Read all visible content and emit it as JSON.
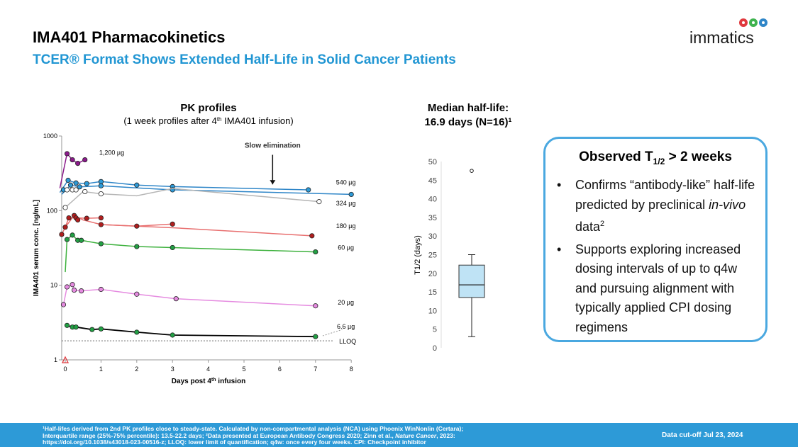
{
  "header": {
    "title": "IMA401 Pharmacokinetics",
    "subtitle": "TCER® Format Shows Extended Half-Life in Solid Cancer Patients",
    "logo_text": "immatics"
  },
  "colors": {
    "accent": "#2d9ad7",
    "subtitle": "#2196d3",
    "dose_1200": "#8b1a8b",
    "dose_540": "#2f86c8",
    "dose_324": "#b5b5b5",
    "dose_180": "#e86f6f",
    "dose_60": "#3db13d",
    "dose_20": "#e58be0",
    "dose_6_6": "#000000"
  },
  "chart_data": [
    {
      "type": "line",
      "title": "PK profiles",
      "subtitle_parts": [
        "(1 week profiles after 4",
        "th",
        " IMA401 infusion)"
      ],
      "xlabel_parts": [
        "Days post 4",
        "th",
        " infusion"
      ],
      "ylabel": "IMA401 serum conc. [ng/mL]",
      "yscale": "log",
      "ylim": [
        1,
        1000
      ],
      "xlim": [
        -0.1,
        8
      ],
      "x_ticks": [
        0,
        1,
        2,
        3,
        4,
        5,
        6,
        7,
        8
      ],
      "y_ticks": [
        {
          "value": 1,
          "label": "1"
        },
        {
          "value": 10,
          "label": "10"
        },
        {
          "value": 100,
          "label": "100"
        },
        {
          "value": 1000,
          "label": "1000"
        }
      ],
      "lloq": {
        "value": 1.8,
        "label": "LLOQ"
      },
      "annotation": {
        "label": "Slow elimination",
        "x": 5.8
      },
      "series": [
        {
          "name": "1,200 µg",
          "color": "#8b1a8b",
          "fill": "#8b1a8b",
          "lines": [
            [
              [
                -0.15,
                200
              ],
              [
                0.05,
                580
              ],
              [
                0.2,
                480
              ],
              [
                0.35,
                430
              ],
              [
                0.55,
                480
              ]
            ]
          ],
          "points": [
            [
              0.05,
              580
            ],
            [
              0.2,
              480
            ],
            [
              0.35,
              430
            ],
            [
              0.55,
              480
            ]
          ]
        },
        {
          "name": "540 µg",
          "color": "#2f86c8",
          "fill": "#2d9ad7",
          "lines": [
            [
              [
                -0.15,
                175
              ],
              [
                0.08,
                255
              ],
              [
                0.3,
                235
              ],
              [
                0.6,
                230
              ],
              [
                1.0,
                245
              ],
              [
                2.0,
                220
              ],
              [
                3.0,
                210
              ],
              [
                6.8,
                190
              ]
            ],
            [
              [
                -0.1,
                165
              ],
              [
                0.15,
                220
              ],
              [
                0.4,
                208
              ],
              [
                1.0,
                215
              ],
              [
                2.0,
                202
              ],
              [
                3.0,
                190
              ],
              [
                8.0,
                165
              ]
            ]
          ],
          "points": [
            [
              0.08,
              255
            ],
            [
              0.3,
              235
            ],
            [
              0.6,
              230
            ],
            [
              1.0,
              245
            ],
            [
              2.0,
              220
            ],
            [
              3.0,
              210
            ],
            [
              6.8,
              190
            ],
            [
              -0.05,
              190
            ],
            [
              0.15,
              220
            ],
            [
              0.4,
              208
            ],
            [
              1.0,
              215
            ],
            [
              3.0,
              190
            ],
            [
              8.0,
              165
            ]
          ]
        },
        {
          "name": "324 µg",
          "color": "#b5b5b5",
          "fill": "#ffffff",
          "lines": [
            [
              [
                0,
                110
              ],
              [
                0.5,
                180
              ],
              [
                1.0,
                168
              ],
              [
                2.0,
                158
              ],
              [
                3.0,
                198
              ],
              [
                7.1,
                132
              ]
            ]
          ],
          "points": [
            [
              0,
              110
            ],
            [
              0.05,
              190
            ],
            [
              0.2,
              190
            ],
            [
              0.3,
              190
            ],
            [
              0.55,
              180
            ],
            [
              1.0,
              168
            ],
            [
              7.1,
              132
            ]
          ]
        },
        {
          "name": "180 µg",
          "color": "#e86f6f",
          "fill": "#b01e1e",
          "lines": [
            [
              [
                -0.1,
                48
              ],
              [
                0.0,
                60
              ],
              [
                0.1,
                80
              ],
              [
                0.3,
                80
              ],
              [
                0.6,
                79
              ],
              [
                1.0,
                80
              ]
            ],
            [
              [
                0.0,
                60
              ],
              [
                0.25,
                86
              ],
              [
                0.5,
                75
              ],
              [
                1.0,
                65
              ],
              [
                2.0,
                62
              ],
              [
                3.0,
                66
              ]
            ],
            [
              [
                1.0,
                65
              ],
              [
                2.0,
                62
              ],
              [
                3.0,
                59
              ],
              [
                6.9,
                46
              ]
            ]
          ],
          "points": [
            [
              -0.1,
              48
            ],
            [
              0.0,
              60
            ],
            [
              0.1,
              80
            ],
            [
              0.25,
              86
            ],
            [
              0.3,
              80
            ],
            [
              0.6,
              79
            ],
            [
              1.0,
              80
            ],
            [
              0.35,
              75
            ],
            [
              1.0,
              65
            ],
            [
              2.0,
              62
            ],
            [
              3.0,
              66
            ],
            [
              6.9,
              46
            ]
          ]
        },
        {
          "name": "60 µg",
          "color": "#3db13d",
          "fill": "#22a044",
          "lines": [
            [
              [
                0.0,
                15
              ],
              [
                0.05,
                41
              ],
              [
                0.2,
                47
              ],
              [
                0.35,
                40
              ],
              [
                0.45,
                40
              ],
              [
                1.0,
                36
              ],
              [
                2.0,
                33
              ],
              [
                3.0,
                32
              ],
              [
                7.0,
                28
              ]
            ]
          ],
          "points": [
            [
              0.05,
              41
            ],
            [
              0.2,
              47
            ],
            [
              0.35,
              40
            ],
            [
              0.45,
              40
            ],
            [
              1.0,
              36
            ],
            [
              2.0,
              33
            ],
            [
              3.0,
              32
            ],
            [
              7.0,
              28
            ]
          ]
        },
        {
          "name": "20 µg",
          "color": "#e58be0",
          "fill": "#e58be0",
          "lines": [
            [
              [
                -0.05,
                5.5
              ],
              [
                0.05,
                9.5
              ],
              [
                0.2,
                10.2
              ],
              [
                0.25,
                8.6
              ],
              [
                0.45,
                8.4
              ],
              [
                1.0,
                8.8
              ],
              [
                2.0,
                7.6
              ],
              [
                3.1,
                6.6
              ],
              [
                7.0,
                5.3
              ]
            ]
          ],
          "points": [
            [
              -0.05,
              5.5
            ],
            [
              0.05,
              9.5
            ],
            [
              0.2,
              10.2
            ],
            [
              0.25,
              8.6
            ],
            [
              0.45,
              8.4
            ],
            [
              1.0,
              8.8
            ],
            [
              2.0,
              7.6
            ],
            [
              3.1,
              6.6
            ],
            [
              7.0,
              5.3
            ]
          ]
        },
        {
          "name": "6.6 µg",
          "color": "#000000",
          "fill": "#22a044",
          "lines": [
            [
              [
                0.05,
                2.9
              ],
              [
                0.2,
                2.75
              ],
              [
                0.3,
                2.75
              ],
              [
                0.75,
                2.55
              ],
              [
                1.0,
                2.6
              ],
              [
                2.0,
                2.35
              ],
              [
                3.0,
                2.15
              ],
              [
                7.0,
                2.05
              ]
            ]
          ],
          "points": [
            [
              0.05,
              2.9
            ],
            [
              0.2,
              2.75
            ],
            [
              0.3,
              2.75
            ],
            [
              0.75,
              2.55
            ],
            [
              1.0,
              2.6
            ],
            [
              2.0,
              2.35
            ],
            [
              3.0,
              2.15
            ],
            [
              7.0,
              2.05
            ]
          ]
        }
      ],
      "start_marker": {
        "x": 0,
        "y": 1,
        "shape": "triangle"
      }
    },
    {
      "type": "boxplot",
      "title_line1": "Median half-life:",
      "title_line2": "16.9 days (N=16)¹",
      "ylabel": "T1/2 (days)",
      "ylim": [
        0,
        50
      ],
      "y_ticks": [
        0,
        5,
        10,
        15,
        20,
        25,
        30,
        35,
        40,
        45,
        50
      ],
      "box": {
        "min": 3.0,
        "q1": 13.5,
        "median": 16.9,
        "q3": 22.2,
        "max": 25.0,
        "outliers": [
          47.5
        ]
      }
    }
  ],
  "callout": {
    "title_pre": "Observed T",
    "title_sub": "1/2",
    "title_post": " > 2 weeks",
    "bullet_symbol": "•",
    "bullet1": {
      "pre": "Confirms “antibody-like” half-life predicted by preclinical ",
      "italic": "in-vivo",
      "post": " data",
      "sup": "2"
    },
    "bullet2": "Supports exploring increased dosing intervals of up to q4w and pursuing alignment with typically applied CPI dosing regimens"
  },
  "footer": {
    "footnote_line1": "¹Half-lifes derived from 2nd PK profiles close to steady-state. Calculated by non-compartmental analysis (NCA) using Phoenix WinNonlin (Certara);",
    "footnote_line2": "Interquartile range (25%-75% percentile): 13.5-22.2 days; ²Data presented at European Antibody Congress 2020; Zinn et al., ",
    "footnote_journal": "Nature Cancer",
    "footnote_line2_end": ", 2023:",
    "footnote_line3": "https://doi.org/10.1038/s43018-023-00516-z; LLOQ: lower limit of quantification; q4w: once every four weeks. CPI: Checkpoint inhibitor",
    "cutoff": "Data cut-off Jul 23, 2024"
  }
}
